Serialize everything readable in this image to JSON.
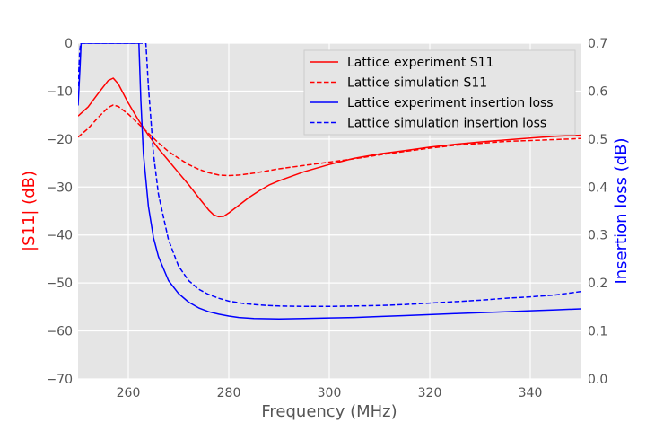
{
  "chart_data": {
    "type": "line",
    "xlabel": "Frequency (MHz)",
    "ylabel_left": "|S11| (dB)",
    "ylabel_right": "Insertion loss (dB)",
    "xlim": [
      250,
      350
    ],
    "ylim_left": [
      -70,
      0
    ],
    "ylim_right": [
      0,
      0.7
    ],
    "x_ticks": [
      260,
      280,
      300,
      320,
      340
    ],
    "y_ticks_left": [
      0,
      -10,
      -20,
      -30,
      -40,
      -50,
      -60,
      -70
    ],
    "y_ticks_right": [
      0.0,
      0.1,
      0.2,
      0.3,
      0.4,
      0.5,
      0.6,
      0.7
    ],
    "grid": true,
    "legend_position": "upper-right",
    "colors": {
      "plot_bg": "#e5e5e5",
      "grid": "#ffffff",
      "s11_axis": "#ff0000",
      "il_axis": "#0000ff"
    },
    "series": [
      {
        "name": "Lattice experiment S11",
        "axis": "left",
        "color": "#ff0000",
        "dash": "solid",
        "points": [
          [
            250,
            -15.2
          ],
          [
            252,
            -13.3
          ],
          [
            254,
            -10.5
          ],
          [
            256,
            -7.8
          ],
          [
            257,
            -7.3
          ],
          [
            258,
            -8.5
          ],
          [
            260,
            -12.5
          ],
          [
            262,
            -16.0
          ],
          [
            264,
            -19.2
          ],
          [
            266,
            -22.0
          ],
          [
            268,
            -24.5
          ],
          [
            270,
            -27.0
          ],
          [
            272,
            -29.5
          ],
          [
            274,
            -32.2
          ],
          [
            276,
            -34.8
          ],
          [
            277,
            -35.8
          ],
          [
            278,
            -36.2
          ],
          [
            279,
            -36.1
          ],
          [
            280,
            -35.4
          ],
          [
            282,
            -33.8
          ],
          [
            284,
            -32.2
          ],
          [
            286,
            -30.8
          ],
          [
            288,
            -29.6
          ],
          [
            290,
            -28.7
          ],
          [
            295,
            -26.8
          ],
          [
            300,
            -25.3
          ],
          [
            305,
            -24.0
          ],
          [
            310,
            -23.1
          ],
          [
            315,
            -22.4
          ],
          [
            320,
            -21.7
          ],
          [
            325,
            -21.1
          ],
          [
            330,
            -20.6
          ],
          [
            335,
            -20.2
          ],
          [
            340,
            -19.8
          ],
          [
            345,
            -19.4
          ],
          [
            350,
            -19.2
          ]
        ]
      },
      {
        "name": "Lattice simulation S11",
        "axis": "left",
        "color": "#ff0000",
        "dash": "dashed",
        "points": [
          [
            250,
            -19.6
          ],
          [
            252,
            -17.8
          ],
          [
            254,
            -15.5
          ],
          [
            256,
            -13.4
          ],
          [
            257,
            -12.9
          ],
          [
            258,
            -13.2
          ],
          [
            260,
            -14.8
          ],
          [
            262,
            -16.8
          ],
          [
            264,
            -18.8
          ],
          [
            266,
            -20.8
          ],
          [
            268,
            -22.6
          ],
          [
            270,
            -24.0
          ],
          [
            272,
            -25.3
          ],
          [
            274,
            -26.3
          ],
          [
            276,
            -27.0
          ],
          [
            278,
            -27.5
          ],
          [
            280,
            -27.6
          ],
          [
            282,
            -27.5
          ],
          [
            285,
            -27.1
          ],
          [
            290,
            -26.2
          ],
          [
            295,
            -25.5
          ],
          [
            300,
            -24.8
          ],
          [
            305,
            -24.1
          ],
          [
            310,
            -23.3
          ],
          [
            315,
            -22.6
          ],
          [
            320,
            -21.9
          ],
          [
            325,
            -21.3
          ],
          [
            330,
            -20.9
          ],
          [
            335,
            -20.5
          ],
          [
            340,
            -20.3
          ],
          [
            345,
            -20.1
          ],
          [
            350,
            -19.9
          ]
        ]
      },
      {
        "name": "Lattice experiment insertion loss",
        "axis": "right",
        "color": "#0000ff",
        "dash": "solid",
        "points": [
          [
            250.0,
            0.57
          ],
          [
            250.4,
            0.65
          ],
          [
            250.6,
            0.7
          ],
          [
            262.1,
            0.7
          ],
          [
            262.5,
            0.58
          ],
          [
            263,
            0.47
          ],
          [
            264,
            0.36
          ],
          [
            265,
            0.295
          ],
          [
            266,
            0.255
          ],
          [
            268,
            0.205
          ],
          [
            270,
            0.178
          ],
          [
            272,
            0.16
          ],
          [
            274,
            0.148
          ],
          [
            276,
            0.14
          ],
          [
            278,
            0.135
          ],
          [
            280,
            0.131
          ],
          [
            282,
            0.128
          ],
          [
            285,
            0.126
          ],
          [
            290,
            0.125
          ],
          [
            295,
            0.126
          ],
          [
            300,
            0.127
          ],
          [
            305,
            0.128
          ],
          [
            310,
            0.13
          ],
          [
            315,
            0.132
          ],
          [
            320,
            0.134
          ],
          [
            325,
            0.136
          ],
          [
            330,
            0.138
          ],
          [
            335,
            0.14
          ],
          [
            340,
            0.142
          ],
          [
            345,
            0.144
          ],
          [
            350,
            0.146
          ]
        ]
      },
      {
        "name": "Lattice simulation insertion loss",
        "axis": "right",
        "color": "#0000ff",
        "dash": "dashed",
        "points": [
          [
            250.0,
            0.61
          ],
          [
            250.3,
            0.68
          ],
          [
            250.5,
            0.7
          ],
          [
            263.5,
            0.7
          ],
          [
            264,
            0.61
          ],
          [
            265,
            0.47
          ],
          [
            266,
            0.385
          ],
          [
            268,
            0.29
          ],
          [
            270,
            0.235
          ],
          [
            272,
            0.205
          ],
          [
            274,
            0.187
          ],
          [
            276,
            0.176
          ],
          [
            278,
            0.168
          ],
          [
            280,
            0.162
          ],
          [
            283,
            0.157
          ],
          [
            286,
            0.154
          ],
          [
            290,
            0.152
          ],
          [
            295,
            0.151
          ],
          [
            300,
            0.151
          ],
          [
            305,
            0.152
          ],
          [
            310,
            0.153
          ],
          [
            315,
            0.155
          ],
          [
            320,
            0.158
          ],
          [
            325,
            0.161
          ],
          [
            330,
            0.164
          ],
          [
            335,
            0.168
          ],
          [
            340,
            0.171
          ],
          [
            345,
            0.175
          ],
          [
            350,
            0.182
          ]
        ]
      }
    ]
  }
}
